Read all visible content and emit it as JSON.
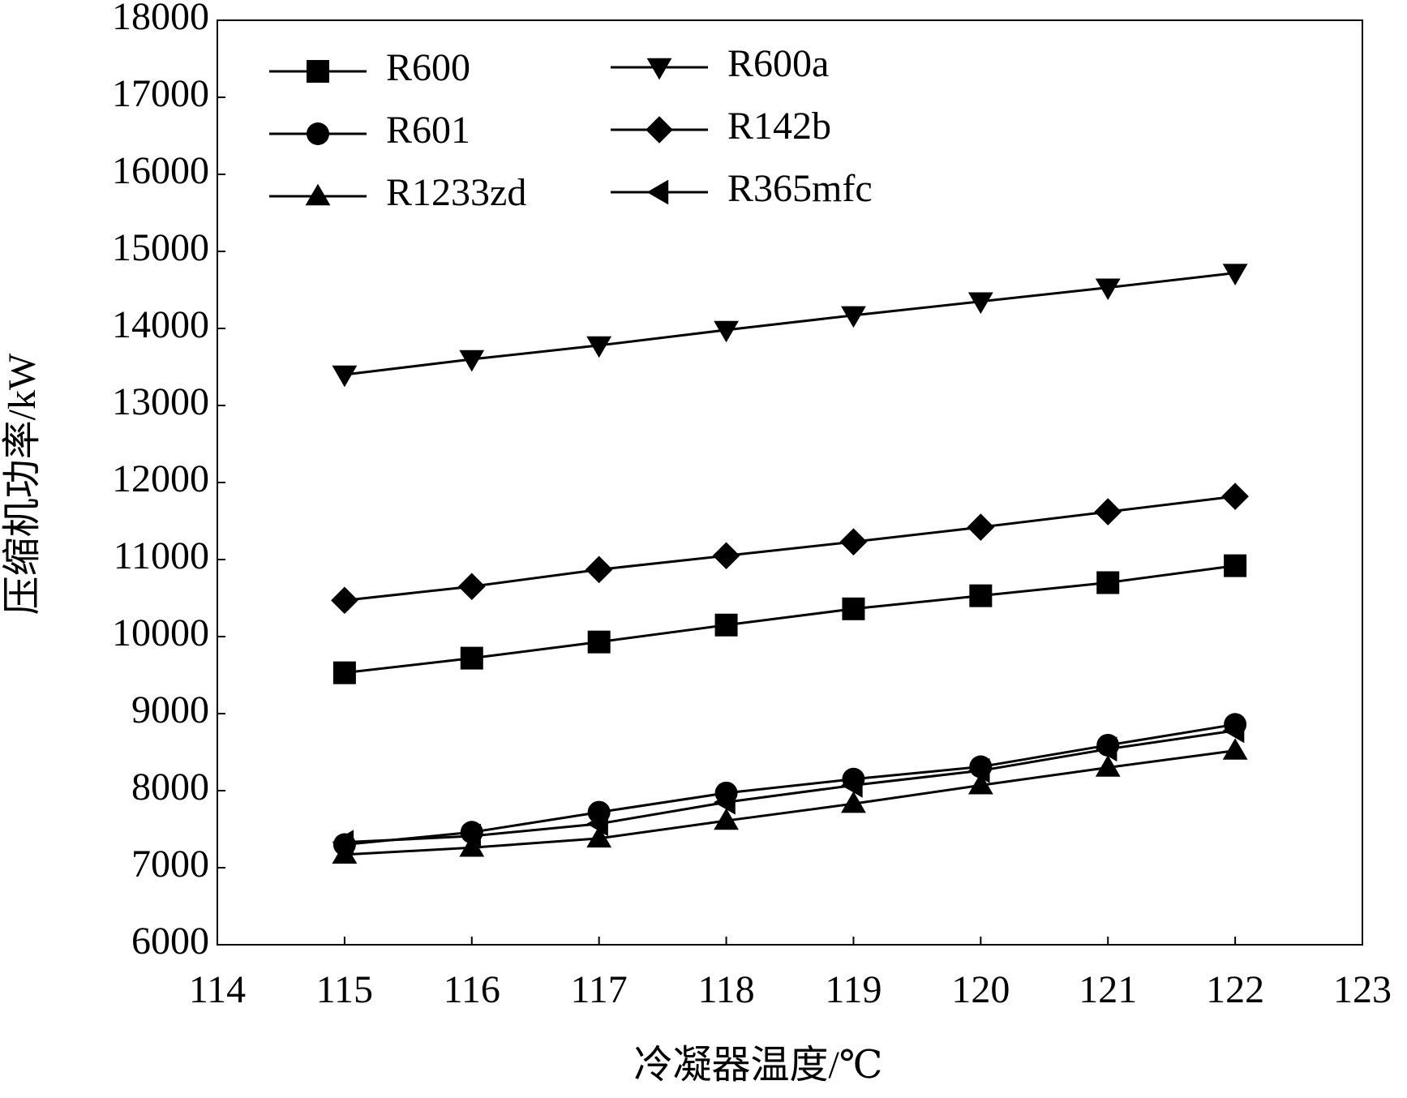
{
  "chart_data": {
    "type": "line",
    "xlabel": "冷凝器温度/℃",
    "ylabel": "压缩机功率/kW",
    "x": [
      115,
      116,
      117,
      118,
      119,
      120,
      121,
      122
    ],
    "xlim": [
      114,
      123
    ],
    "xticks": [
      114,
      115,
      116,
      117,
      118,
      119,
      120,
      121,
      122,
      123
    ],
    "ylim": [
      6000,
      18000
    ],
    "yticks": [
      6000,
      7000,
      8000,
      9000,
      10000,
      11000,
      12000,
      13000,
      14000,
      15000,
      16000,
      17000,
      18000
    ],
    "legend": "upper left",
    "series": [
      {
        "name": "R600",
        "color": "#000000",
        "marker": "square",
        "values": [
          9530,
          9720,
          9930,
          10150,
          10360,
          10530,
          10700,
          10920
        ]
      },
      {
        "name": "R601",
        "color": "#000000",
        "marker": "circle",
        "values": [
          7300,
          7460,
          7720,
          7970,
          8150,
          8310,
          8590,
          8860
        ]
      },
      {
        "name": "R1233zd",
        "color": "#000000",
        "marker": "triangle-up",
        "values": [
          7170,
          7260,
          7380,
          7610,
          7830,
          8070,
          8300,
          8520
        ]
      },
      {
        "name": "R600a",
        "color": "#000000",
        "marker": "triangle-down",
        "values": [
          13400,
          13600,
          13780,
          13980,
          14170,
          14350,
          14530,
          14720
        ]
      },
      {
        "name": "R142b",
        "color": "#000000",
        "marker": "diamond",
        "values": [
          10470,
          10650,
          10870,
          11050,
          11230,
          11420,
          11620,
          11820
        ]
      },
      {
        "name": "R365mfc",
        "color": "#000000",
        "marker": "triangle-left",
        "values": [
          7330,
          7410,
          7570,
          7850,
          8070,
          8260,
          8540,
          8780
        ]
      }
    ]
  }
}
